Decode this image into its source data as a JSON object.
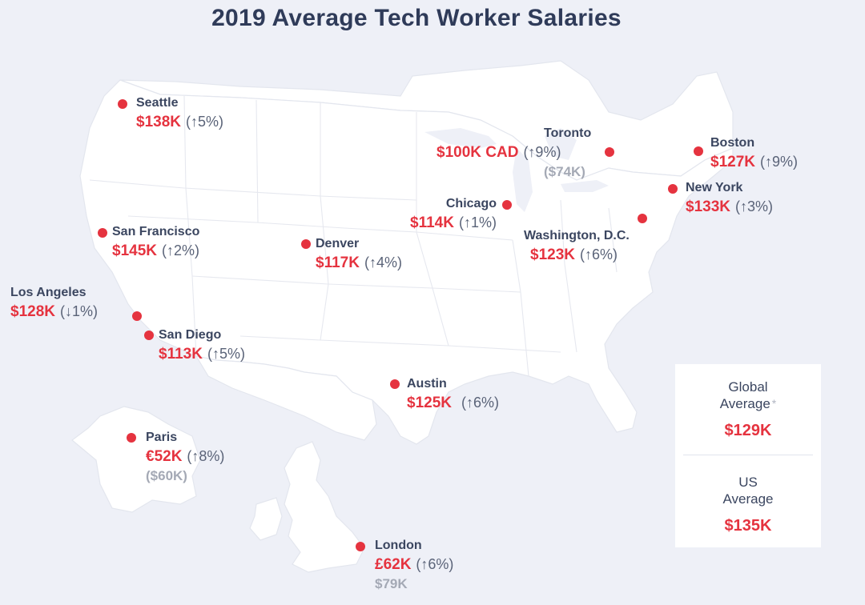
{
  "title": "2019 Average Tech Worker Salaries",
  "colors": {
    "accent": "#e5333f",
    "text": "#3b4660",
    "muted": "#a4a9b5",
    "background": "#eef0f7"
  },
  "cities": {
    "seattle": {
      "name": "Seattle",
      "salary": "$138K",
      "change": "(↑5%)"
    },
    "san_francisco": {
      "name": "San Francisco",
      "salary": "$145K",
      "change": "(↑2%)"
    },
    "los_angeles": {
      "name": "Los Angeles",
      "salary": "$128K",
      "change": "(↓1%)"
    },
    "san_diego": {
      "name": "San Diego",
      "salary": "$113K",
      "change": "(↑5%)"
    },
    "denver": {
      "name": "Denver",
      "salary": "$117K",
      "change": "(↑4%)"
    },
    "chicago": {
      "name": "Chicago",
      "salary": "$114K",
      "change": "(↑1%)"
    },
    "toronto": {
      "name": "Toronto",
      "salary": "$100K CAD",
      "change": "(↑9%)",
      "converted": "($74K)"
    },
    "boston": {
      "name": "Boston",
      "salary": "$127K",
      "change": "(↑9%)"
    },
    "new_york": {
      "name": "New York",
      "salary": "$133K",
      "change": "(↑3%)"
    },
    "washington": {
      "name": "Washington, D.C.",
      "salary": "$123K",
      "change": "(↑6%)"
    },
    "austin": {
      "name": "Austin",
      "salary": "$125K",
      "change": "(↑6%)"
    },
    "paris": {
      "name": "Paris",
      "salary": "€52K",
      "change": "(↑8%)",
      "converted": "($60K)"
    },
    "london": {
      "name": "London",
      "salary": "£62K",
      "change": "(↑6%)",
      "converted": "$79K"
    }
  },
  "averages": {
    "global": {
      "label_line1": "Global",
      "label_line2": "Average",
      "asterisk": "*",
      "value": "$129K"
    },
    "us": {
      "label_line1": "US",
      "label_line2": "Average",
      "value": "$135K"
    }
  }
}
